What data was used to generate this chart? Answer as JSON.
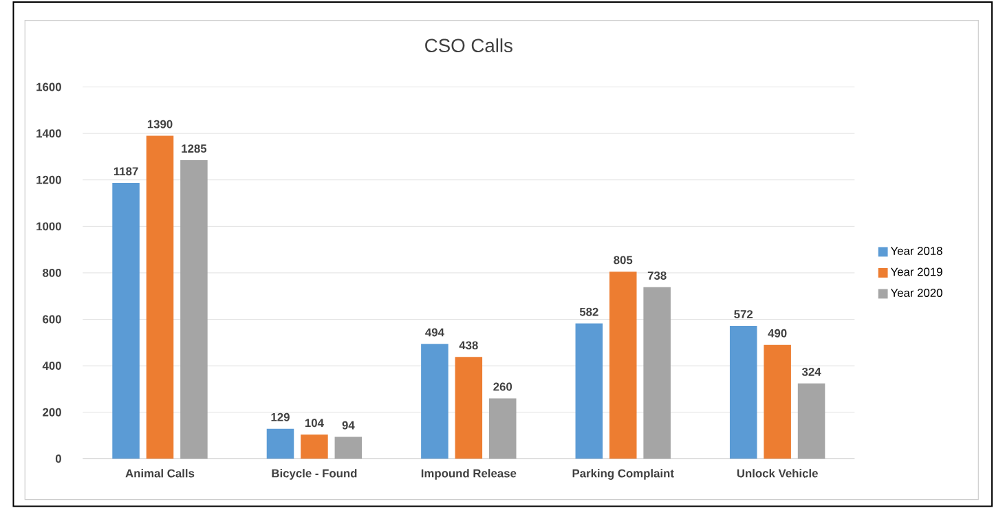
{
  "chart_data": {
    "type": "bar",
    "title": "CSO Calls",
    "categories": [
      "Animal Calls",
      "Bicycle - Found",
      "Impound Release",
      "Parking Complaint",
      "Unlock Vehicle"
    ],
    "series": [
      {
        "name": "Year 2018",
        "color": "#5b9bd5",
        "values": [
          1187,
          129,
          494,
          582,
          572
        ]
      },
      {
        "name": "Year 2019",
        "color": "#ed7d31",
        "values": [
          1390,
          104,
          438,
          805,
          490
        ]
      },
      {
        "name": "Year 2020",
        "color": "#a5a5a5",
        "values": [
          1285,
          94,
          260,
          738,
          324
        ]
      }
    ],
    "ylim": [
      0,
      1600
    ],
    "yticks": [
      0,
      200,
      400,
      600,
      800,
      1000,
      1200,
      1400,
      1600
    ],
    "grid": "y",
    "legend": "right",
    "data_labels": true
  }
}
